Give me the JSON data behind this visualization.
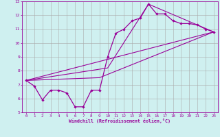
{
  "xlabel": "Windchill (Refroidissement éolien,°C)",
  "background_color": "#cff0f0",
  "grid_color": "#aaaaaa",
  "line_color": "#990099",
  "spine_color": "#990099",
  "xlim": [
    -0.5,
    23.5
  ],
  "ylim": [
    5,
    13
  ],
  "xticks": [
    0,
    1,
    2,
    3,
    4,
    5,
    6,
    7,
    8,
    9,
    10,
    11,
    12,
    13,
    14,
    15,
    16,
    17,
    18,
    19,
    20,
    21,
    22,
    23
  ],
  "yticks": [
    5,
    6,
    7,
    8,
    9,
    10,
    11,
    12,
    13
  ],
  "series_main": {
    "x": [
      0,
      1,
      2,
      3,
      4,
      5,
      6,
      7,
      8,
      9,
      10,
      11,
      12,
      13,
      14,
      15,
      16,
      17,
      18,
      19,
      20,
      21,
      22,
      23
    ],
    "y": [
      7.3,
      6.9,
      5.9,
      6.6,
      6.6,
      6.4,
      5.4,
      5.4,
      6.6,
      6.6,
      9.0,
      10.7,
      11.0,
      11.6,
      11.8,
      12.8,
      12.1,
      12.1,
      11.6,
      11.4,
      11.4,
      11.3,
      11.0,
      10.8
    ]
  },
  "series_lines": [
    {
      "x": [
        0,
        23
      ],
      "y": [
        7.3,
        10.8
      ]
    },
    {
      "x": [
        0,
        9,
        23
      ],
      "y": [
        7.3,
        7.5,
        10.8
      ]
    },
    {
      "x": [
        0,
        10,
        15,
        23
      ],
      "y": [
        7.3,
        8.2,
        12.8,
        10.8
      ]
    }
  ]
}
